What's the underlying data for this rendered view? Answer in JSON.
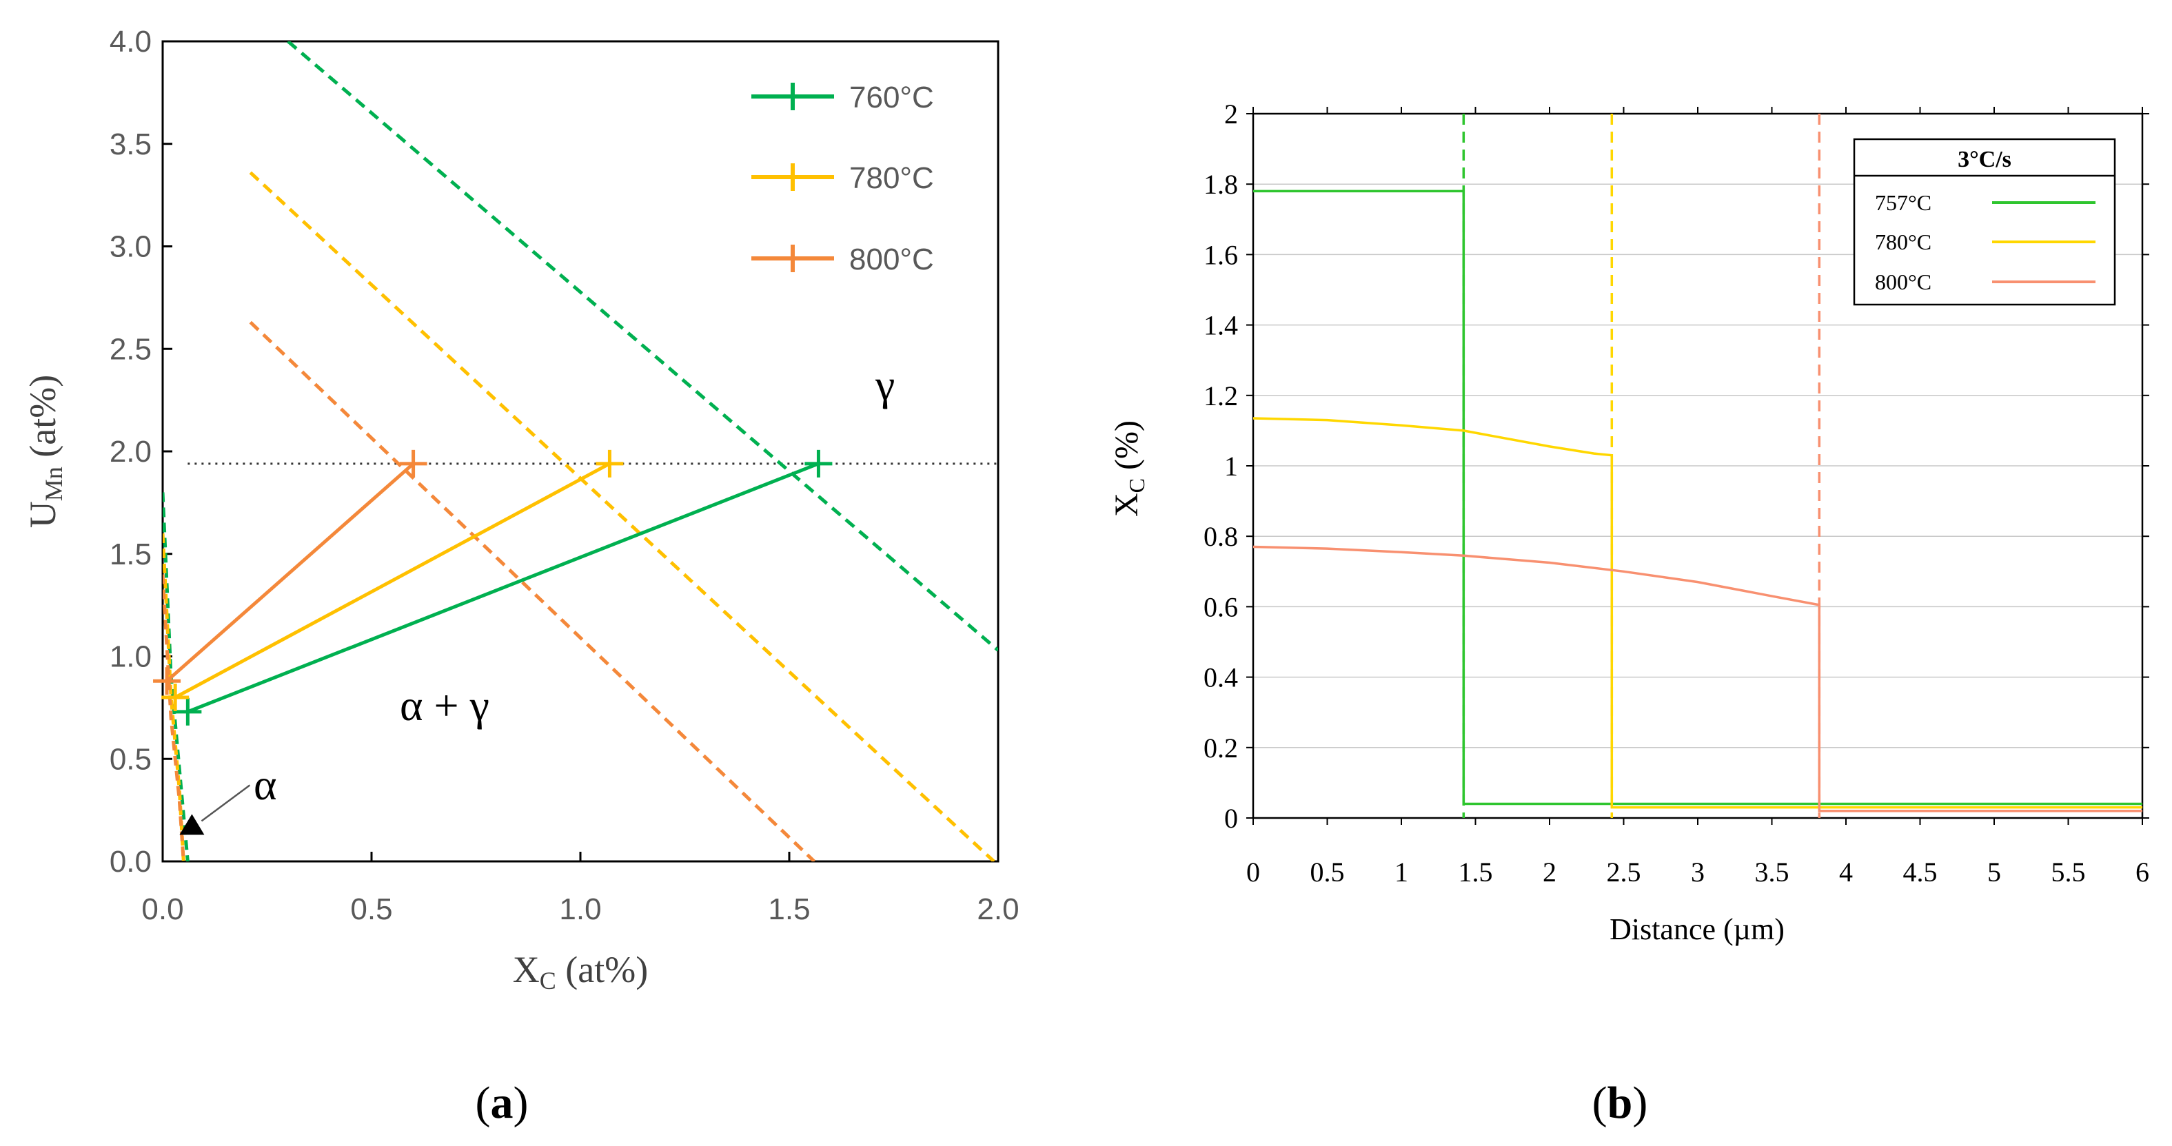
{
  "chart_data": [
    {
      "type": "line",
      "panel_label": "a",
      "xlabel": {
        "main": "X",
        "sub": "C",
        "unit": " (at%)"
      },
      "ylabel": {
        "main": "U",
        "sub": "Mn",
        "unit": " (at%)"
      },
      "xlim": [
        0,
        2.0
      ],
      "ylim": [
        0,
        4.0
      ],
      "xticks": [
        "0.0",
        "0.5",
        "1.0",
        "1.5",
        "2.0"
      ],
      "yticks": [
        "0.0",
        "0.5",
        "1.0",
        "1.5",
        "2.0",
        "2.5",
        "3.0",
        "3.5",
        "4.0"
      ],
      "legend": {
        "placement": "top-right",
        "entries": [
          {
            "label": "760°C",
            "color": "#00b050"
          },
          {
            "label": "780°C",
            "color": "#ffc000"
          },
          {
            "label": "800°C",
            "color": "#f4883a"
          }
        ]
      },
      "annotations": {
        "gamma": "γ",
        "alpha_gamma": "α + γ",
        "alpha": "α"
      },
      "reference_line": {
        "y": 1.94,
        "style": "dotted",
        "color": "#333333"
      },
      "series": [
        {
          "name": "760°C",
          "color": "#00b050",
          "tie_line": [
            [
              0.06,
              0.73
            ],
            [
              1.57,
              1.94
            ]
          ],
          "gamma_boundary": [
            [
              0.3,
              4.0
            ],
            [
              2.0,
              1.03
            ]
          ],
          "alpha_boundary": [
            [
              0.0,
              1.8
            ],
            [
              0.02,
              0.9
            ],
            [
              0.04,
              0.45
            ],
            [
              0.06,
              0.0
            ]
          ]
        },
        {
          "name": "780°C",
          "color": "#ffc000",
          "tie_line": [
            [
              0.03,
              0.8
            ],
            [
              1.07,
              1.94
            ]
          ],
          "gamma_boundary": [
            [
              0.21,
              3.36
            ],
            [
              1.99,
              0.0
            ]
          ],
          "alpha_boundary": [
            [
              0.0,
              1.6
            ],
            [
              0.02,
              0.8
            ],
            [
              0.04,
              0.35
            ],
            [
              0.05,
              0.0
            ]
          ]
        },
        {
          "name": "800°C",
          "color": "#f4883a",
          "tie_line": [
            [
              0.01,
              0.88
            ],
            [
              0.6,
              1.94
            ]
          ],
          "gamma_boundary": [
            [
              0.21,
              2.63
            ],
            [
              1.56,
              0.0
            ]
          ],
          "alpha_boundary": [
            [
              0.0,
              1.4
            ],
            [
              0.02,
              0.7
            ],
            [
              0.04,
              0.3
            ],
            [
              0.05,
              0.0
            ]
          ]
        }
      ],
      "marker": {
        "x": 0.07,
        "y": 0.17,
        "shape": "triangle"
      }
    },
    {
      "type": "line",
      "panel_label": "b",
      "xlabel": "Distance (µm)",
      "ylabel": {
        "main": "X",
        "sub": "C",
        "unit": " (%)"
      },
      "xlim": [
        0,
        6
      ],
      "ylim": [
        0,
        2
      ],
      "xticks": [
        "0",
        "0.5",
        "1",
        "1.5",
        "2",
        "2.5",
        "3",
        "3.5",
        "4",
        "4.5",
        "5",
        "5.5",
        "6"
      ],
      "yticks": [
        "0",
        "0.2",
        "0.4",
        "0.6",
        "0.8",
        "1",
        "1.2",
        "1.4",
        "1.6",
        "1.8",
        "2"
      ],
      "legend": {
        "placement": "top-right",
        "title": "3°C/s",
        "entries": [
          {
            "label": "757°C",
            "color": "#2ec52e"
          },
          {
            "label": "780°C",
            "color": "#ffd700"
          },
          {
            "label": "800°C",
            "color": "#f89070"
          }
        ]
      },
      "series": [
        {
          "name": "757°C",
          "color": "#2ec52e",
          "interface_x": 1.42,
          "points": [
            [
              0,
              1.78
            ],
            [
              1.42,
              1.78
            ],
            [
              1.42,
              0.04
            ],
            [
              6,
              0.04
            ]
          ]
        },
        {
          "name": "780°C",
          "color": "#ffd700",
          "interface_x": 2.42,
          "points": [
            [
              0,
              1.135
            ],
            [
              0.5,
              1.13
            ],
            [
              1.0,
              1.115
            ],
            [
              1.42,
              1.1
            ],
            [
              2.0,
              1.055
            ],
            [
              2.3,
              1.035
            ],
            [
              2.42,
              1.03
            ],
            [
              2.42,
              0.03
            ],
            [
              6,
              0.03
            ]
          ]
        },
        {
          "name": "800°C",
          "color": "#f89070",
          "interface_x": 3.82,
          "points": [
            [
              0,
              0.77
            ],
            [
              0.5,
              0.765
            ],
            [
              1.0,
              0.755
            ],
            [
              1.42,
              0.745
            ],
            [
              2.0,
              0.725
            ],
            [
              2.5,
              0.7
            ],
            [
              3.0,
              0.67
            ],
            [
              3.5,
              0.63
            ],
            [
              3.82,
              0.605
            ],
            [
              3.82,
              0.02
            ],
            [
              6,
              0.02
            ]
          ]
        }
      ]
    }
  ]
}
